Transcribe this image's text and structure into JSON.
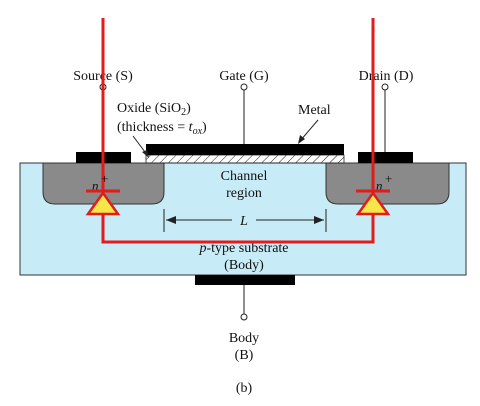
{
  "diagram": {
    "terminals": {
      "source": "Source (S)",
      "gate": "Gate (G)",
      "drain": "Drain (D)",
      "body_line1": "Body",
      "body_line2": "(B)"
    },
    "oxide": {
      "line1": "Oxide (SiO",
      "line1_sub": "2",
      "line1_end": ")",
      "line2": "(thickness = ",
      "line2_var": "t",
      "line2_sub": "ox",
      "line2_end": ")"
    },
    "metal_label": "Metal",
    "channel": {
      "line1": "Channel",
      "line2": "region"
    },
    "length_label": "L",
    "substrate": {
      "line1": "p-type substrate",
      "line2": "(Body)"
    },
    "source_region": "n+",
    "drain_region": "n+",
    "caption": "(b)",
    "colors": {
      "substrate": "#c8ecf7",
      "diffusion": "#8a8a8a",
      "contact": "#000000",
      "overlay_wire": "#e31b1b",
      "diode_fill": "#f5e64a"
    }
  }
}
